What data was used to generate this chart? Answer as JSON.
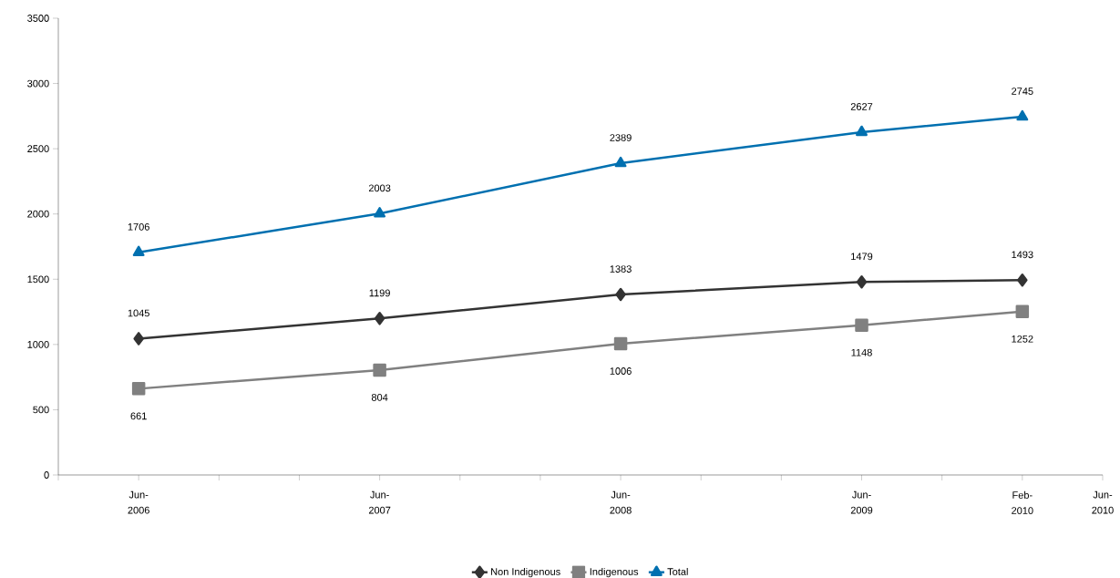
{
  "chart_data": {
    "type": "line",
    "x": [
      "2006-06",
      "2007-06",
      "2008-06",
      "2009-06",
      "2010-02"
    ],
    "series": [
      {
        "name": "Non Indigenous",
        "color": "#333333",
        "marker": "diamond",
        "values": [
          1045,
          1199,
          1383,
          1479,
          1493
        ]
      },
      {
        "name": "Indigenous",
        "color": "#808080",
        "marker": "square",
        "values": [
          661,
          804,
          1006,
          1148,
          1252
        ]
      },
      {
        "name": "Total",
        "color": "#0070b0",
        "marker": "triangle",
        "values": [
          1706,
          2003,
          2389,
          2627,
          2745
        ]
      }
    ],
    "xlim": [
      "2006-02",
      "2010-06"
    ],
    "xticks": [
      {
        "value": "2006-02",
        "label": null
      },
      {
        "value": "2006-06",
        "label": "Jun-2006"
      },
      {
        "value": "2006-10",
        "label": null
      },
      {
        "value": "2007-02",
        "label": null
      },
      {
        "value": "2007-06",
        "label": "Jun-2007"
      },
      {
        "value": "2007-10",
        "label": null
      },
      {
        "value": "2008-02",
        "label": null
      },
      {
        "value": "2008-06",
        "label": "Jun-2008"
      },
      {
        "value": "2008-10",
        "label": null
      },
      {
        "value": "2009-02",
        "label": null
      },
      {
        "value": "2009-06",
        "label": "Jun-2009"
      },
      {
        "value": "2009-10",
        "label": null
      },
      {
        "value": "2010-02",
        "label": "Feb-2010"
      },
      {
        "value": "2010-06",
        "label": "Jun-2010"
      }
    ],
    "ylim": [
      0,
      3500
    ],
    "yticks": [
      0,
      500,
      1000,
      1500,
      2000,
      2500,
      3000,
      3500
    ],
    "data_labels": true,
    "legend": "bottom",
    "grid": false,
    "line_style": "solid"
  }
}
